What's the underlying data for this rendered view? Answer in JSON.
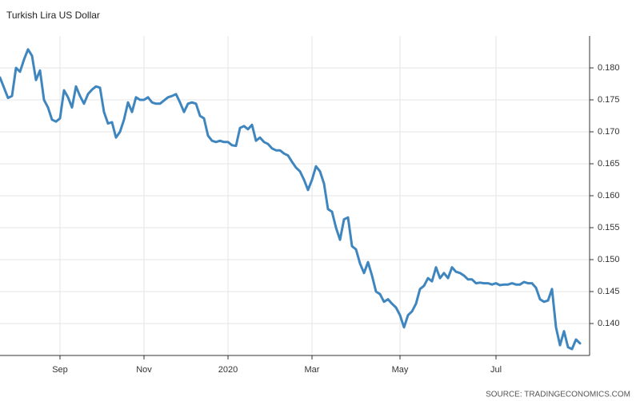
{
  "chart_data": {
    "type": "line",
    "title": "Turkish Lira US Dollar",
    "source": "SOURCE: TRADINGECONOMICS.COM",
    "color": "#3f86bf",
    "grid": true,
    "y_axis_side": "right",
    "categories": [
      null,
      null,
      null,
      null,
      null,
      null,
      null,
      null,
      null,
      null,
      null,
      null,
      null,
      null,
      null,
      "Sep",
      null,
      null,
      null,
      null,
      null,
      null,
      null,
      null,
      null,
      null,
      null,
      null,
      null,
      null,
      null,
      null,
      null,
      null,
      null,
      null,
      "Nov",
      null,
      null,
      null,
      null,
      null,
      null,
      null,
      null,
      null,
      null,
      null,
      null,
      null,
      null,
      null,
      null,
      null,
      null,
      null,
      null,
      "2020",
      null,
      null,
      null,
      null,
      null,
      null,
      null,
      null,
      null,
      null,
      null,
      null,
      null,
      null,
      null,
      null,
      null,
      null,
      null,
      null,
      "Mar",
      null,
      null,
      null,
      null,
      null,
      null,
      null,
      null,
      null,
      null,
      null,
      null,
      null,
      null,
      null,
      null,
      null,
      null,
      null,
      null,
      null,
      "May",
      null,
      null,
      null,
      null,
      null,
      null,
      null,
      null,
      null,
      null,
      null,
      null,
      null,
      null,
      null,
      null,
      null,
      null,
      null,
      null,
      null,
      null,
      null,
      "Jul",
      null,
      null,
      null,
      null,
      null,
      null,
      null,
      null,
      null,
      null,
      null,
      null,
      null,
      null,
      null,
      null,
      null,
      null,
      null,
      null,
      null
    ],
    "values": [
      0.1785,
      0.1769,
      0.1753,
      0.1756,
      0.18,
      0.1794,
      0.1813,
      0.1829,
      0.1819,
      0.1781,
      0.1796,
      0.175,
      0.1738,
      0.1719,
      0.1716,
      0.1721,
      0.1765,
      0.1754,
      0.1738,
      0.1771,
      0.1756,
      0.1744,
      0.1759,
      0.1766,
      0.1771,
      0.1769,
      0.1731,
      0.1713,
      0.1715,
      0.1691,
      0.17,
      0.1719,
      0.1746,
      0.1731,
      0.1754,
      0.175,
      0.175,
      0.1754,
      0.1746,
      0.1744,
      0.1744,
      0.1749,
      0.1754,
      0.1756,
      0.1759,
      0.1746,
      0.1731,
      0.1744,
      0.1746,
      0.1744,
      0.1725,
      0.1721,
      0.1694,
      0.1686,
      0.1684,
      0.1686,
      0.1684,
      0.1684,
      0.1679,
      0.1678,
      0.1706,
      0.1709,
      0.1704,
      0.1711,
      0.1686,
      0.1691,
      0.1684,
      0.1681,
      0.1674,
      0.1671,
      0.1671,
      0.1666,
      0.1663,
      0.1653,
      0.1644,
      0.1638,
      0.1625,
      0.1609,
      0.1625,
      0.1646,
      0.1638,
      0.1619,
      0.1579,
      0.1575,
      0.155,
      0.1531,
      0.1563,
      0.1566,
      0.1521,
      0.1516,
      0.1494,
      0.1479,
      0.1496,
      0.1475,
      0.145,
      0.1446,
      0.1434,
      0.1438,
      0.1431,
      0.1425,
      0.1413,
      0.1394,
      0.1413,
      0.1419,
      0.1431,
      0.1454,
      0.1459,
      0.1471,
      0.1466,
      0.1488,
      0.1471,
      0.1479,
      0.1471,
      0.1488,
      0.1481,
      0.1479,
      0.1475,
      0.1469,
      0.1469,
      0.1463,
      0.1464,
      0.1463,
      0.1463,
      0.1461,
      0.1463,
      0.146,
      0.1461,
      0.1461,
      0.1463,
      0.1461,
      0.1461,
      0.1465,
      0.1463,
      0.1463,
      0.1456,
      0.1438,
      0.1434,
      0.1436,
      0.1454,
      0.1394,
      0.1366,
      0.1388,
      0.1363,
      0.136,
      0.1375,
      0.1369
    ],
    "ylim": [
      0.135,
      0.185
    ],
    "yticks": [
      {
        "value": 0.14,
        "label": "0.140"
      },
      0.145,
      {
        "value": 0.15,
        "label": "0.150"
      },
      0.155,
      {
        "value": 0.16,
        "label": "0.160"
      },
      0.165,
      {
        "value": 0.17,
        "label": "0.170"
      },
      0.175,
      {
        "value": 0.18,
        "label": "0.180"
      }
    ]
  }
}
